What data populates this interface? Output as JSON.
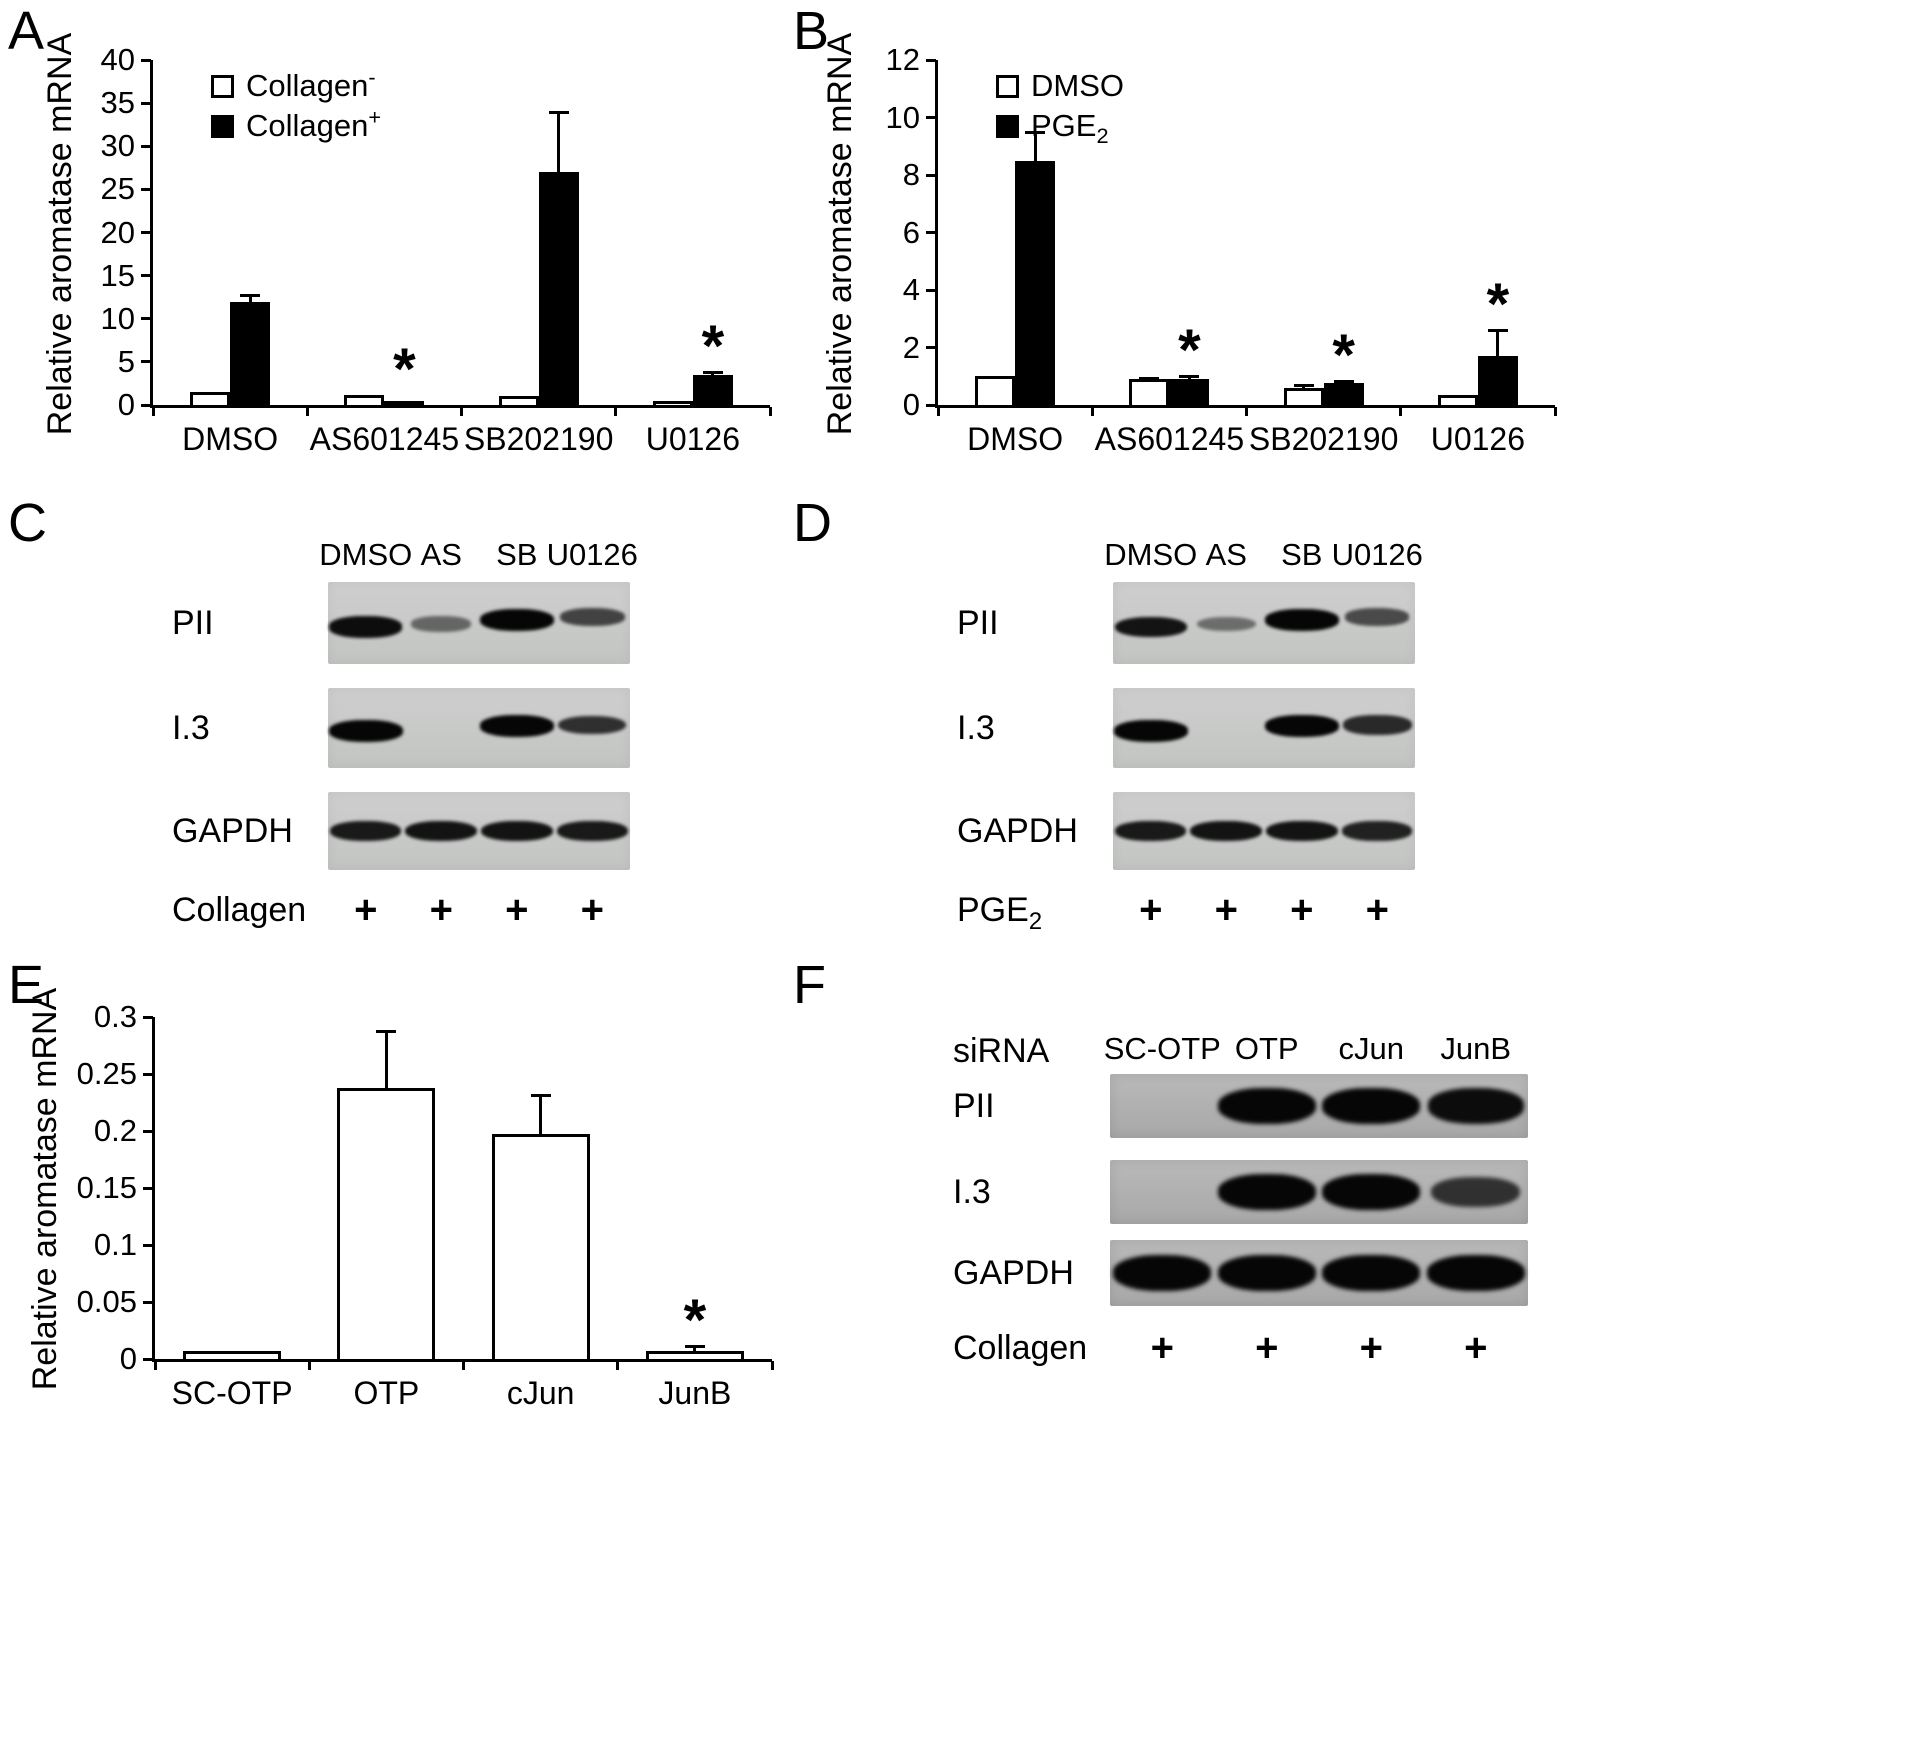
{
  "figure": {
    "background": "#ffffff",
    "text_color": "#000000",
    "bar_fill_light": "#ffffff",
    "bar_fill_dark": "#000000"
  },
  "chart_data": [
    {
      "id": "A",
      "type": "bar",
      "ylabel": "Relative aromatase mRNA",
      "ylim": [
        0,
        40
      ],
      "ytick": 5,
      "grid": false,
      "legend_position": "top-left",
      "categories": [
        "DMSO",
        "AS601245",
        "SB202190",
        "U0126"
      ],
      "series": [
        {
          "name": "Collagen",
          "name_sup": "-",
          "fill": "#ffffff",
          "values": [
            1.5,
            1.2,
            1.0,
            0.5
          ],
          "errors": [
            0,
            0,
            0,
            0
          ]
        },
        {
          "name": "Collagen",
          "name_sup": "+",
          "fill": "#000000",
          "values": [
            12,
            0.5,
            27,
            3.5
          ],
          "errors": [
            0.8,
            0,
            7,
            0.3
          ]
        }
      ],
      "stars": [
        false,
        true,
        false,
        true
      ]
    },
    {
      "id": "B",
      "type": "bar",
      "ylabel": "Relative aromatase mRNA",
      "ylim": [
        0,
        12
      ],
      "ytick": 2,
      "grid": false,
      "legend_position": "top-left",
      "categories": [
        "DMSO",
        "AS601245",
        "SB202190",
        "U0126"
      ],
      "series": [
        {
          "name": "DMSO",
          "fill": "#ffffff",
          "values": [
            1.0,
            0.9,
            0.6,
            0.35
          ],
          "errors": [
            0,
            0.05,
            0.08,
            0
          ]
        },
        {
          "name": "PGE",
          "name_sub": "2",
          "fill": "#000000",
          "values": [
            8.5,
            0.9,
            0.75,
            1.7
          ],
          "errors": [
            1.0,
            0.1,
            0.1,
            0.9
          ]
        }
      ],
      "stars": [
        false,
        true,
        true,
        true
      ]
    },
    {
      "id": "E",
      "type": "bar",
      "ylabel": "Relative aromatase mRNA",
      "ylim": [
        0,
        0.3
      ],
      "ytick": 0.05,
      "grid": false,
      "legend_position": "none",
      "categories": [
        "SC-OTP",
        "OTP",
        "cJun",
        "JunB"
      ],
      "series": [
        {
          "name": "",
          "fill": "#ffffff",
          "values": [
            0.007,
            0.238,
            0.197,
            0.007
          ],
          "errors": [
            0,
            0.05,
            0.035,
            0.004
          ]
        }
      ],
      "stars": [
        false,
        false,
        false,
        true
      ]
    }
  ],
  "panels": {
    "A": {
      "label": "A"
    },
    "B": {
      "label": "B"
    },
    "C": {
      "label": "C",
      "lanes": [
        "DMSO",
        "AS",
        "SB",
        "U0126"
      ],
      "rows": [
        {
          "label": "PII",
          "bands": [
            0.95,
            0.3,
            1.0,
            0.55
          ],
          "dy": [
            4,
            1,
            -3,
            -6
          ]
        },
        {
          "label": "I.3",
          "bands": [
            1.0,
            0,
            1.0,
            0.7
          ],
          "dy": [
            3,
            0,
            -2,
            -3
          ]
        },
        {
          "label": "GAPDH",
          "bands": [
            0.85,
            0.9,
            0.9,
            0.85
          ],
          "dy": [
            0,
            0,
            0,
            0
          ]
        }
      ],
      "treatment": {
        "text": "Collagen"
      },
      "plus": [
        "+",
        "+",
        "+",
        "+"
      ]
    },
    "D": {
      "label": "D",
      "lanes": [
        "DMSO",
        "AS",
        "SB",
        "U0126"
      ],
      "rows": [
        {
          "label": "PII",
          "bands": [
            0.9,
            0.25,
            1.0,
            0.5
          ],
          "dy": [
            4,
            1,
            -3,
            -6
          ]
        },
        {
          "label": "I.3",
          "bands": [
            1.0,
            0,
            1.0,
            0.75
          ],
          "dy": [
            3,
            0,
            -2,
            -3
          ]
        },
        {
          "label": "GAPDH",
          "bands": [
            0.85,
            0.9,
            0.9,
            0.8
          ],
          "dy": [
            0,
            0,
            0,
            0
          ]
        }
      ],
      "treatment": {
        "text": "PGE",
        "sub": "2"
      },
      "plus": [
        "+",
        "+",
        "+",
        "+"
      ]
    },
    "E": {
      "label": "E"
    },
    "F": {
      "label": "F",
      "header_label": "siRNA",
      "lanes": [
        "SC-OTP",
        "OTP",
        "cJun",
        "JunB"
      ],
      "rows": [
        {
          "label": "PII",
          "bands": [
            0,
            1.0,
            1.0,
            0.95
          ],
          "dy": [
            0,
            0,
            0,
            0
          ]
        },
        {
          "label": "I.3",
          "bands": [
            0,
            1.0,
            1.0,
            0.65
          ],
          "dy": [
            0,
            0,
            0,
            0
          ]
        },
        {
          "label": "GAPDH",
          "bands": [
            1.0,
            1.0,
            1.0,
            1.0
          ],
          "dy": [
            0,
            0,
            0,
            0
          ]
        }
      ],
      "treatment": {
        "text": "Collagen"
      },
      "plus": [
        "+",
        "+",
        "+",
        "+"
      ]
    }
  }
}
